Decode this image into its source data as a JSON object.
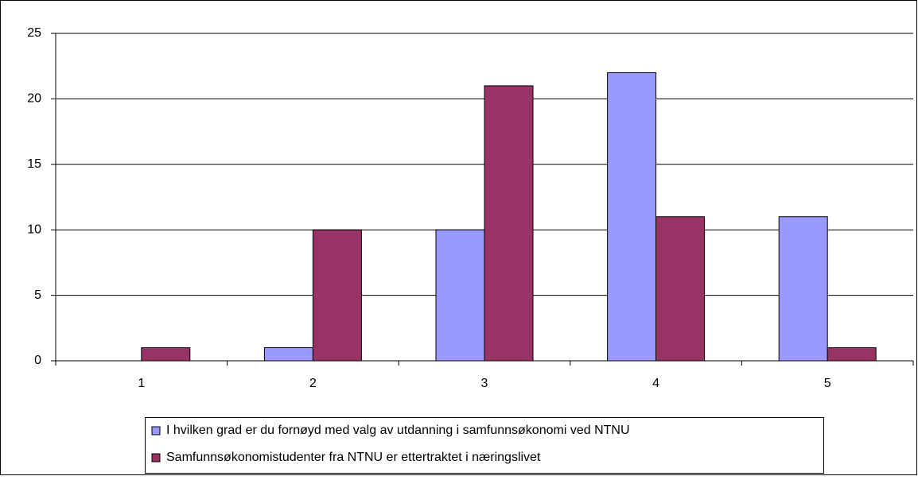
{
  "chart_data": {
    "type": "bar",
    "categories": [
      "1",
      "2",
      "3",
      "4",
      "5"
    ],
    "series": [
      {
        "name": "I hvilken grad er du fornøyd med valg av utdanning i samfunnsøkonomi ved NTNU",
        "color": "#9999ff",
        "values": [
          0,
          1,
          10,
          22,
          11
        ]
      },
      {
        "name": "Samfunnsøkonomistudenter fra NTNU er ettertraktet i næringslivet",
        "color": "#993366",
        "values": [
          1,
          10,
          21,
          11,
          1
        ]
      }
    ],
    "ylim": [
      0,
      25
    ],
    "yticks": [
      0,
      5,
      10,
      15,
      20,
      25
    ],
    "grid": true,
    "legend": "bottom"
  }
}
